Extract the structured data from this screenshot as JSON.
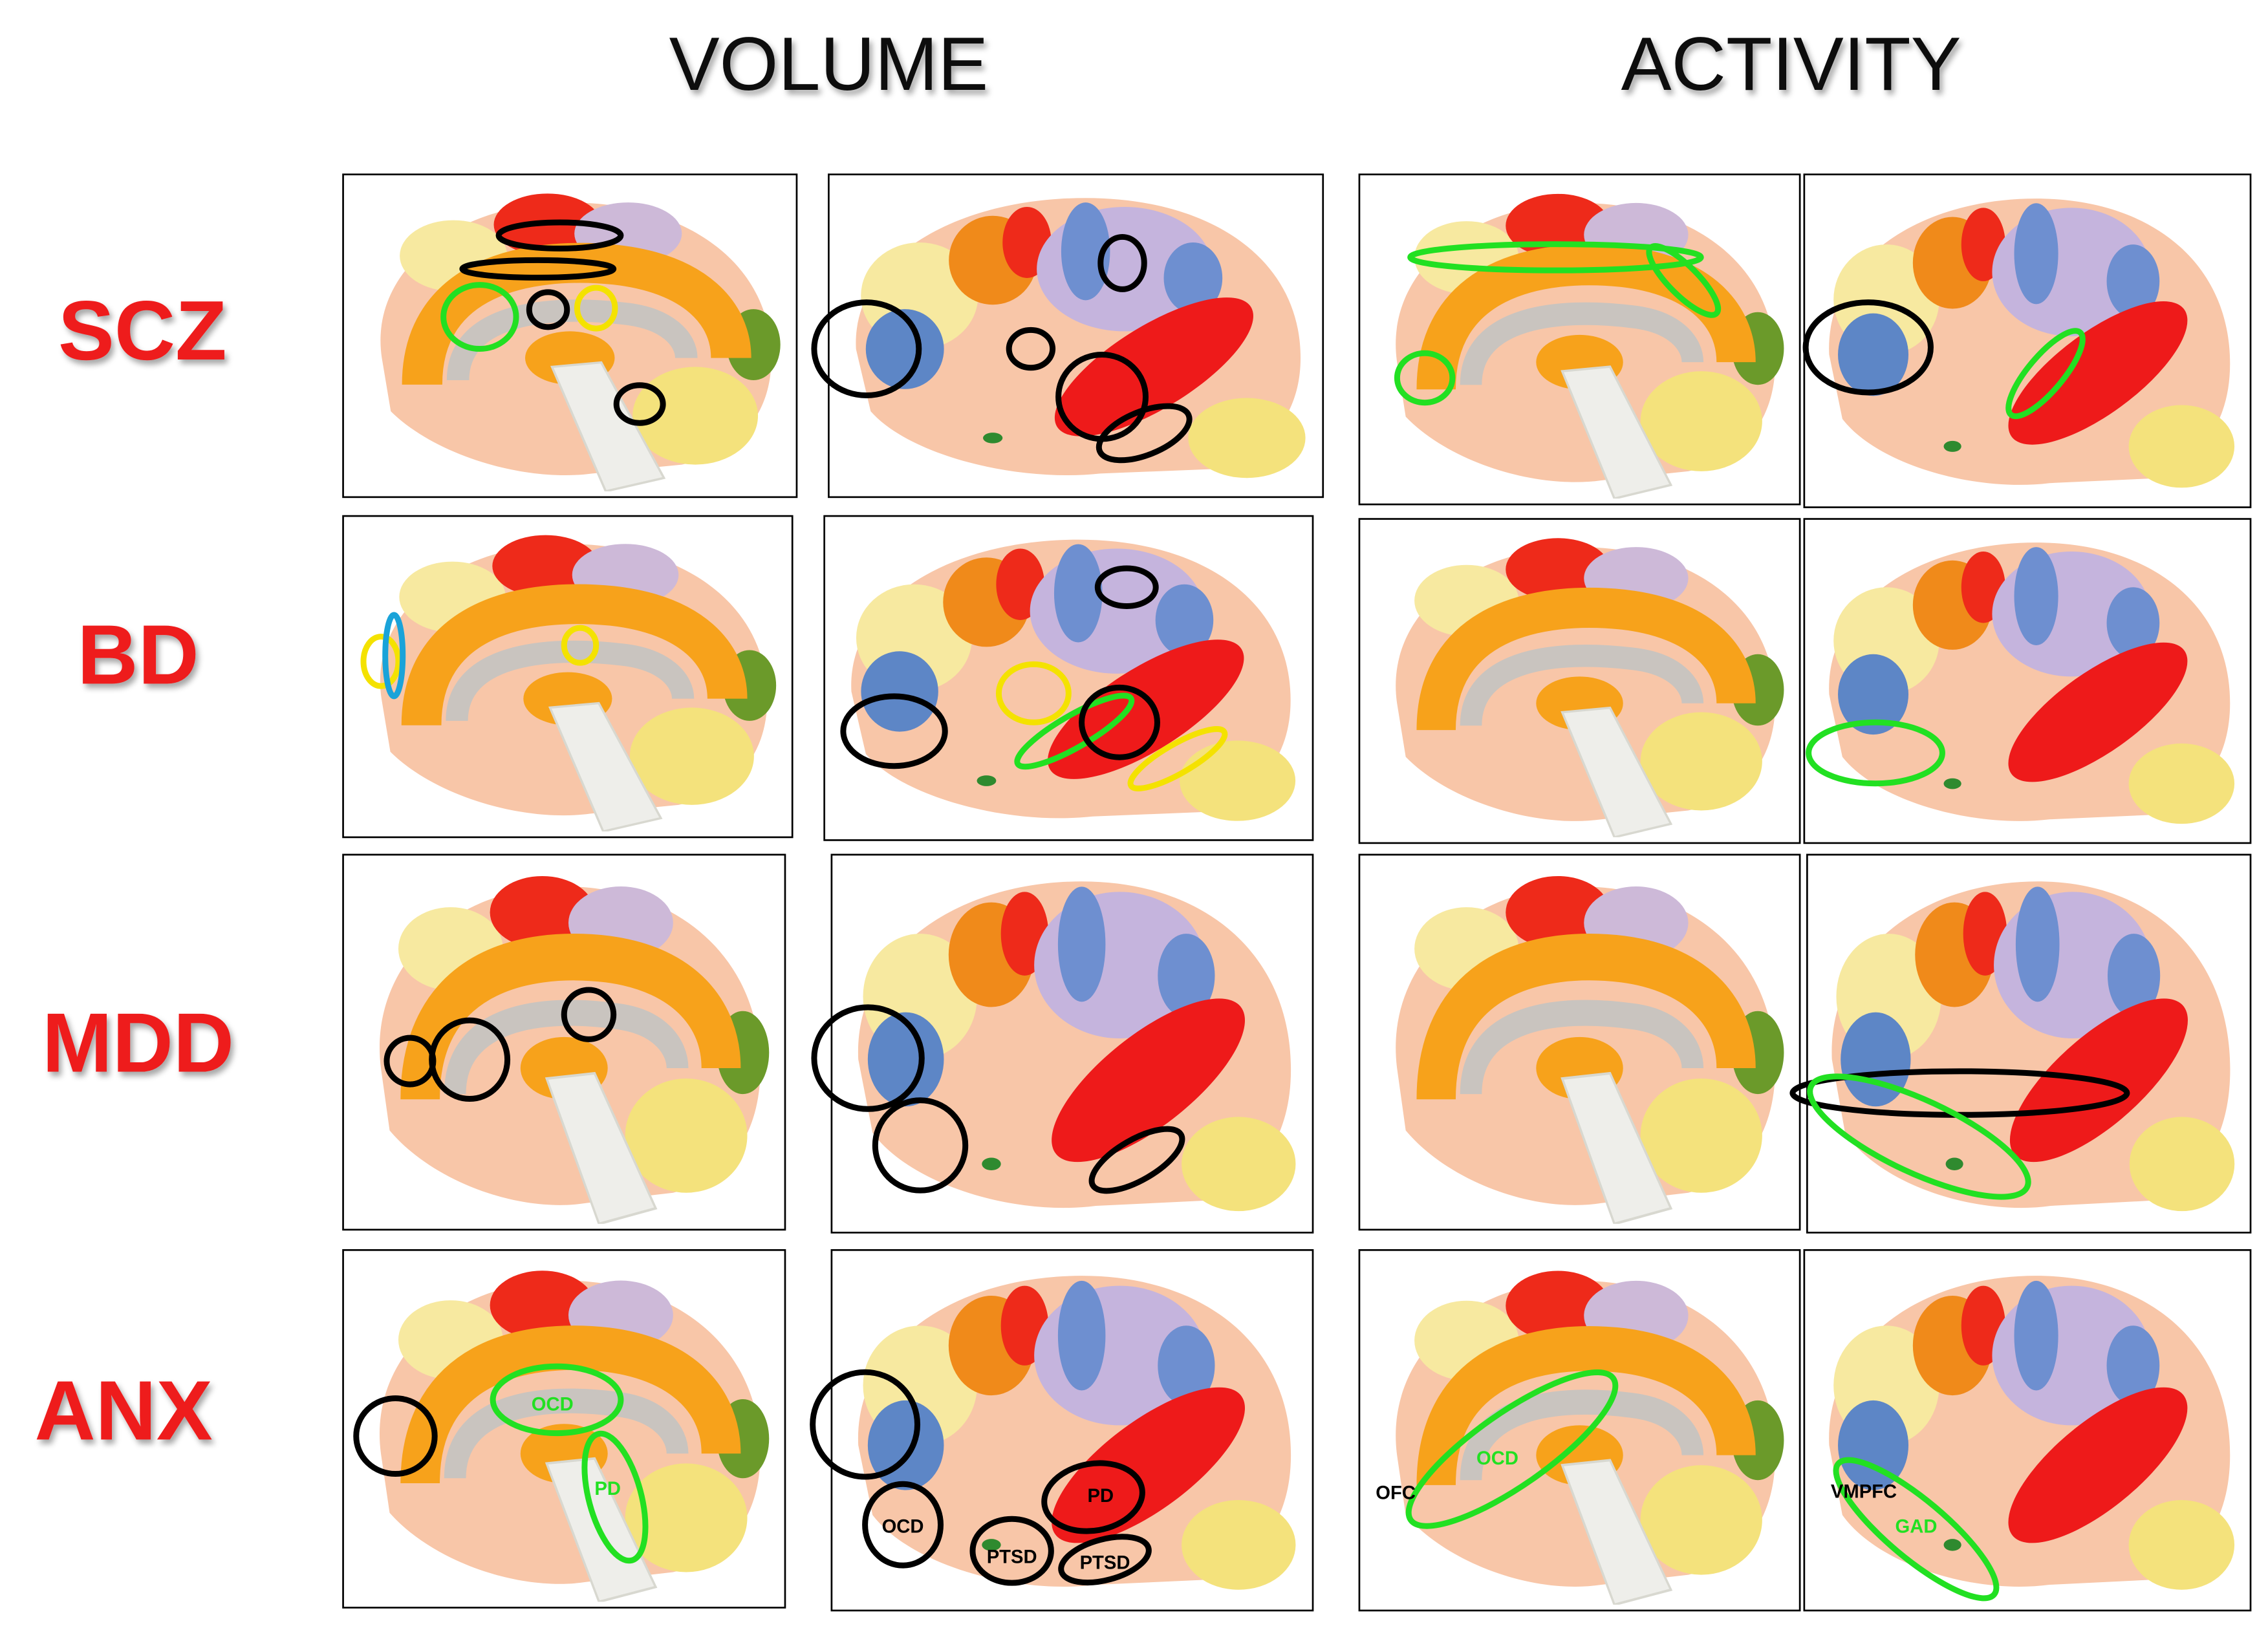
{
  "header": {
    "volume": "VOLUME",
    "activity": "ACTIVITY"
  },
  "rows": [
    {
      "label": "SCZ"
    },
    {
      "label": "BD"
    },
    {
      "label": "MDD"
    },
    {
      "label": "ANX",
      "annotations": {
        "volume_medial": [
          "OCD",
          "PD"
        ],
        "volume_lateral": [
          "OCD",
          "PTSD",
          "PTSD",
          "PD"
        ],
        "activity_medial": [
          "OFC",
          "OCD"
        ],
        "activity_lateral": [
          "VMPFC",
          "GAD"
        ]
      }
    }
  ]
}
